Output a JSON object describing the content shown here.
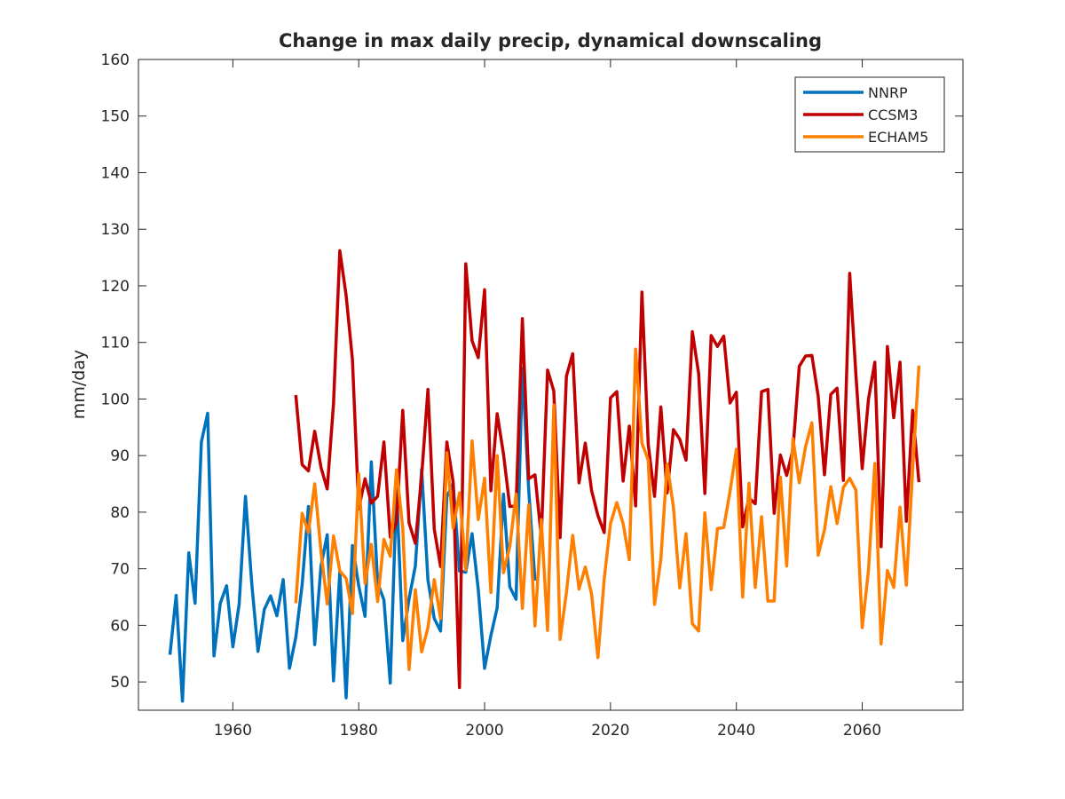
{
  "chart_data": {
    "type": "line",
    "title": "Change in max daily precip, dynamical downscaling",
    "xlabel": "",
    "ylabel": "mm/day",
    "xlim": [
      1945,
      2076
    ],
    "ylim": [
      45,
      160
    ],
    "xticks": [
      1960,
      1980,
      2000,
      2020,
      2040,
      2060
    ],
    "yticks": [
      50,
      60,
      70,
      80,
      90,
      100,
      110,
      120,
      130,
      140,
      150,
      160
    ],
    "grid": false,
    "legend": "top-right",
    "series": [
      {
        "name": "NNRP",
        "color": "#0072BD",
        "x_start": 1950,
        "values": [
          54.8,
          65.3,
          46.6,
          72.8,
          63.9,
          92.4,
          97.5,
          54.6,
          63.9,
          67.0,
          56.2,
          63.8,
          82.8,
          67.5,
          55.4,
          62.8,
          65.2,
          61.7,
          68.1,
          52.4,
          57.9,
          67.1,
          81.0,
          56.6,
          70.5,
          76.0,
          50.2,
          69.5,
          47.2,
          74.1,
          67.0,
          61.6,
          88.9,
          67.5,
          64.5,
          49.8,
          84.3,
          57.3,
          64.7,
          70.5,
          87.6,
          68.0,
          61.2,
          59.0,
          82.7,
          85.1,
          69.6,
          69.4,
          76.2,
          66.3,
          52.4,
          58.2,
          63.1,
          83.2,
          66.8,
          64.6,
          105.4,
          84.0,
          67.9
        ]
      },
      {
        "name": "CCSM3",
        "color": "#C00000",
        "x_start": 1970,
        "values": [
          100.7,
          88.4,
          87.3,
          94.3,
          87.9,
          84.1,
          99.2,
          126.2,
          118.3,
          107.0,
          80.6,
          85.9,
          81.6,
          82.8,
          92.4,
          75.6,
          78.2,
          98.0,
          78.1,
          74.5,
          86.4,
          101.7,
          77.0,
          70.4,
          92.4,
          85.3,
          49.0,
          123.9,
          110.3,
          107.3,
          119.3,
          83.8,
          97.4,
          90.3,
          81.0,
          81.1,
          114.2,
          85.9,
          86.6,
          75.6,
          105.1,
          101.4,
          75.5,
          104.0,
          108.0,
          85.2,
          92.2,
          83.8,
          79.4,
          76.4,
          100.2,
          101.3,
          85.5,
          95.2,
          81.1,
          118.9,
          92.0,
          82.8,
          98.6,
          83.4,
          94.6,
          92.9,
          89.2,
          111.9,
          104.5,
          83.3,
          111.2,
          109.3,
          111.1,
          99.3,
          101.2,
          77.4,
          82.5,
          81.5,
          101.3,
          101.7,
          79.8,
          90.1,
          86.5,
          91.1,
          105.8,
          107.6,
          107.7,
          100.5,
          86.6,
          100.8,
          101.9,
          85.6,
          122.2,
          104.3,
          87.7,
          100.0,
          106.5,
          73.9,
          109.3,
          96.7,
          106.5,
          78.4,
          98.0,
          85.3
        ]
      },
      {
        "name": "ECHAM5",
        "color": "#FF8000",
        "x_start": 1970,
        "values": [
          63.9,
          79.8,
          76.4,
          85.0,
          73.0,
          63.8,
          75.8,
          69.6,
          68.3,
          62.1,
          86.8,
          67.4,
          74.3,
          64.2,
          75.2,
          72.2,
          87.5,
          77.2,
          52.2,
          66.3,
          55.3,
          59.6,
          68.1,
          61.2,
          90.5,
          77.2,
          83.4,
          69.8,
          92.6,
          78.7,
          86.0,
          65.8,
          90.0,
          69.3,
          73.9,
          83.2,
          63.0,
          81.3,
          59.9,
          78.7,
          59.1,
          98.9,
          57.5,
          65.8,
          75.9,
          66.4,
          70.3,
          65.5,
          54.3,
          68.2,
          78.0,
          81.7,
          78.0,
          71.6,
          108.8,
          92.2,
          89.2,
          63.7,
          71.6,
          88.5,
          80.9,
          66.6,
          76.2,
          60.3,
          59.0,
          79.9,
          66.3,
          77.1,
          77.3,
          83.7,
          91.1,
          65.0,
          85.1,
          66.7,
          79.2,
          64.3,
          64.3,
          86.2,
          70.5,
          93.0,
          85.2,
          91.6,
          95.8,
          72.4,
          76.9,
          84.5,
          78.0,
          84.4,
          86.0,
          83.9,
          59.6,
          69.8,
          88.6,
          56.7,
          69.7,
          66.7,
          80.9,
          67.1,
          87.4,
          105.9
        ]
      }
    ]
  }
}
